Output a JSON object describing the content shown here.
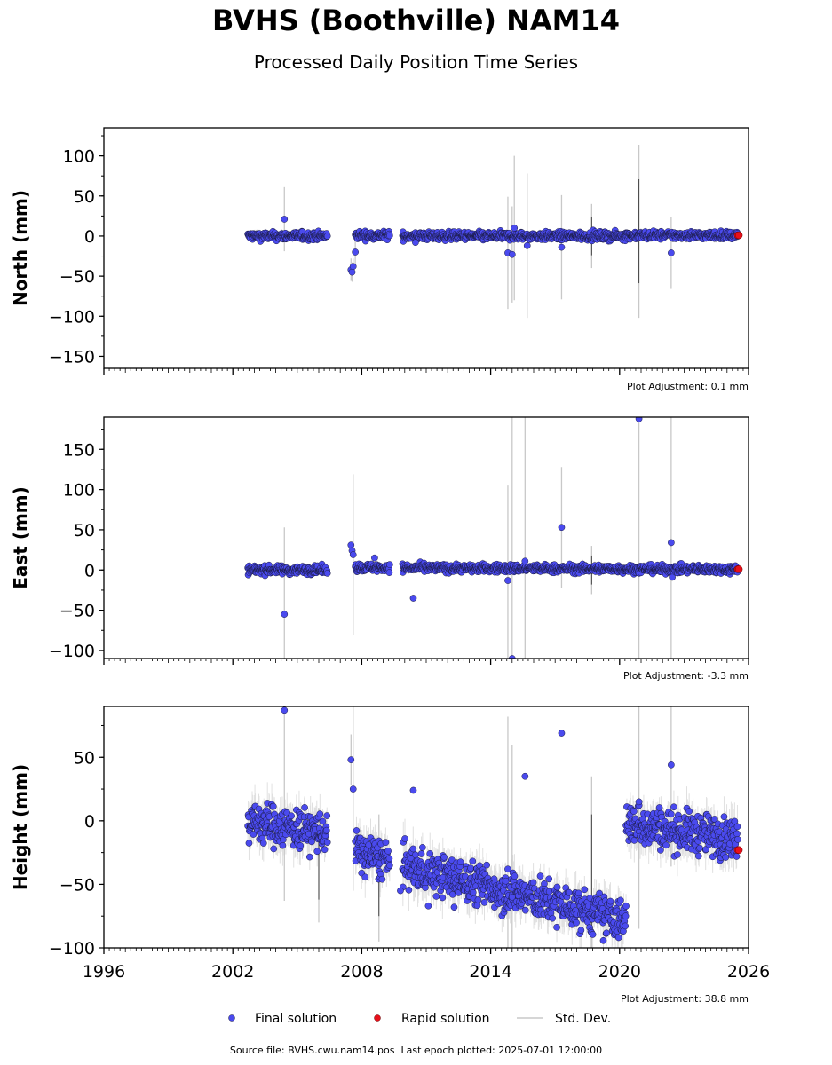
{
  "title": "BVHS (Boothville) NAM14",
  "subtitle": "Processed Daily Position Time Series",
  "footer": {
    "source_file": "Source file: BVHS.cwu.nam14.pos",
    "last_epoch": "Last epoch plotted: 2025-07-01 12:00:00"
  },
  "colors": {
    "final": "#4a4aee",
    "rapid": "#e8101a",
    "stddev": "#c8c8c8",
    "outline": "#1a1a40"
  },
  "chart_data": [
    {
      "type": "scatter",
      "ylabel": "North (mm)",
      "xlim": [
        1996,
        2026
      ],
      "ylim": [
        -165,
        135
      ],
      "yticks": [
        100,
        50,
        0,
        -50,
        -100,
        -150
      ],
      "adjustment": "Plot Adjustment: 0.1 mm",
      "segments": [
        {
          "start": 2002.7,
          "end": 2006.4,
          "center": 0,
          "trend": 0,
          "noise": 2.5
        },
        {
          "start": 2007.7,
          "end": 2009.3,
          "center": 1,
          "trend": 0,
          "noise": 2.5
        },
        {
          "start": 2009.9,
          "end": 2020.3,
          "center": 0,
          "trend": 0,
          "noise": 2.5
        },
        {
          "start": 2020.3,
          "end": 2025.5,
          "center": 1,
          "trend": 0,
          "noise": 2.5
        }
      ],
      "outliers": [
        {
          "x": 2004.4,
          "y": 21,
          "err": 40
        },
        {
          "x": 2007.5,
          "y": -42,
          "err": 14
        },
        {
          "x": 2007.55,
          "y": -45,
          "err": 12
        },
        {
          "x": 2007.6,
          "y": -38,
          "err": 10
        },
        {
          "x": 2007.7,
          "y": -20,
          "err": 20
        },
        {
          "x": 2014.8,
          "y": -21,
          "err": 70
        },
        {
          "x": 2015.0,
          "y": -23,
          "err": 60
        },
        {
          "x": 2015.1,
          "y": 10,
          "err": 90
        },
        {
          "x": 2015.7,
          "y": -12,
          "err": 90
        },
        {
          "x": 2017.3,
          "y": -14,
          "err": 65
        },
        {
          "x": 2010.5,
          "y": -8,
          "err": 0
        },
        {
          "x": 2022.4,
          "y": -21,
          "err": 45
        }
      ],
      "stddev_spikes": [
        {
          "x": 2020.9,
          "y": 6,
          "err": 108
        },
        {
          "x": 2018.7,
          "y": 0,
          "err": 40
        }
      ],
      "rapid": [
        {
          "x": 2025.5,
          "y": 1
        },
        {
          "x": 2025.55,
          "y": 1
        }
      ]
    },
    {
      "type": "scatter",
      "ylabel": "East (mm)",
      "xlim": [
        1996,
        2026
      ],
      "ylim": [
        -110,
        190
      ],
      "yticks": [
        150,
        100,
        50,
        0,
        -50,
        -100
      ],
      "adjustment": "Plot Adjustment: -3.3 mm",
      "segments": [
        {
          "start": 2002.7,
          "end": 2006.4,
          "center": 0,
          "trend": 0,
          "noise": 2.5
        },
        {
          "start": 2007.7,
          "end": 2009.3,
          "center": 3,
          "trend": 0,
          "noise": 2.5
        },
        {
          "start": 2009.9,
          "end": 2020.3,
          "center": 2,
          "trend": -0.1,
          "noise": 2.5
        },
        {
          "start": 2020.3,
          "end": 2025.5,
          "center": 1,
          "trend": 0,
          "noise": 2.5
        }
      ],
      "outliers": [
        {
          "x": 2004.4,
          "y": -55,
          "err": 108
        },
        {
          "x": 2007.5,
          "y": 31,
          "err": 0
        },
        {
          "x": 2007.55,
          "y": 24,
          "err": 0
        },
        {
          "x": 2007.6,
          "y": 19,
          "err": 100
        },
        {
          "x": 2008.6,
          "y": 15,
          "err": 0
        },
        {
          "x": 2010.4,
          "y": -35,
          "err": 0
        },
        {
          "x": 2014.8,
          "y": -13,
          "err": 118
        },
        {
          "x": 2015.0,
          "y": -110,
          "err": 300
        },
        {
          "x": 2015.6,
          "y": 11,
          "err": 300
        },
        {
          "x": 2017.3,
          "y": 53,
          "err": 75
        },
        {
          "x": 2020.9,
          "y": 188,
          "err": 300
        },
        {
          "x": 2022.4,
          "y": 34,
          "err": 300
        },
        {
          "x": 2022.45,
          "y": -9,
          "err": 0
        }
      ],
      "stddev_spikes": [
        {
          "x": 2018.7,
          "y": 0,
          "err": 30
        }
      ],
      "rapid": [
        {
          "x": 2025.5,
          "y": 1
        },
        {
          "x": 2025.55,
          "y": 1
        }
      ]
    },
    {
      "type": "scatter",
      "ylabel": "Height (mm)",
      "xlim": [
        1996,
        2026
      ],
      "ylim": [
        -100,
        90
      ],
      "yticks": [
        50,
        0,
        -50,
        -100
      ],
      "xticks": [
        1996,
        2002,
        2008,
        2014,
        2020,
        2026
      ],
      "adjustment": "Plot Adjustment: 38.8 mm",
      "segments": [
        {
          "start": 2002.7,
          "end": 2006.4,
          "center": -5,
          "trend": -2.5,
          "noise": 8
        },
        {
          "start": 2007.7,
          "end": 2009.3,
          "center": -28,
          "trend": -5,
          "noise": 8
        },
        {
          "start": 2009.9,
          "end": 2020.3,
          "center": -57,
          "trend": -4.2,
          "noise": 8
        },
        {
          "start": 2020.3,
          "end": 2025.5,
          "center": -8,
          "trend": -2.4,
          "noise": 8
        }
      ],
      "outliers": [
        {
          "x": 2004.4,
          "y": 87,
          "err": 150
        },
        {
          "x": 2007.5,
          "y": 48,
          "err": 20
        },
        {
          "x": 2007.6,
          "y": 25,
          "err": 80
        },
        {
          "x": 2009.8,
          "y": -55,
          "err": 0
        },
        {
          "x": 2010.4,
          "y": 24,
          "err": 0
        },
        {
          "x": 2014.8,
          "y": -38,
          "err": 120
        },
        {
          "x": 2015.0,
          "y": -60,
          "err": 120
        },
        {
          "x": 2015.6,
          "y": 35,
          "err": 0
        },
        {
          "x": 2017.3,
          "y": 69,
          "err": 0
        },
        {
          "x": 2020.9,
          "y": 15,
          "err": 100
        },
        {
          "x": 2022.4,
          "y": 44,
          "err": 80
        },
        {
          "x": 2012.3,
          "y": -68,
          "err": 0
        },
        {
          "x": 2011.1,
          "y": -67,
          "err": 0
        }
      ],
      "stddev_spikes": [
        {
          "x": 2018.7,
          "y": -40,
          "err": 75
        },
        {
          "x": 2008.8,
          "y": -45,
          "err": 50
        },
        {
          "x": 2006.0,
          "y": -35,
          "err": 45
        }
      ],
      "rapid": [
        {
          "x": 2025.5,
          "y": -23
        },
        {
          "x": 2025.55,
          "y": -23
        }
      ]
    }
  ],
  "legend": {
    "final": "Final solution",
    "rapid": "Rapid solution",
    "stddev": "Std. Dev."
  }
}
